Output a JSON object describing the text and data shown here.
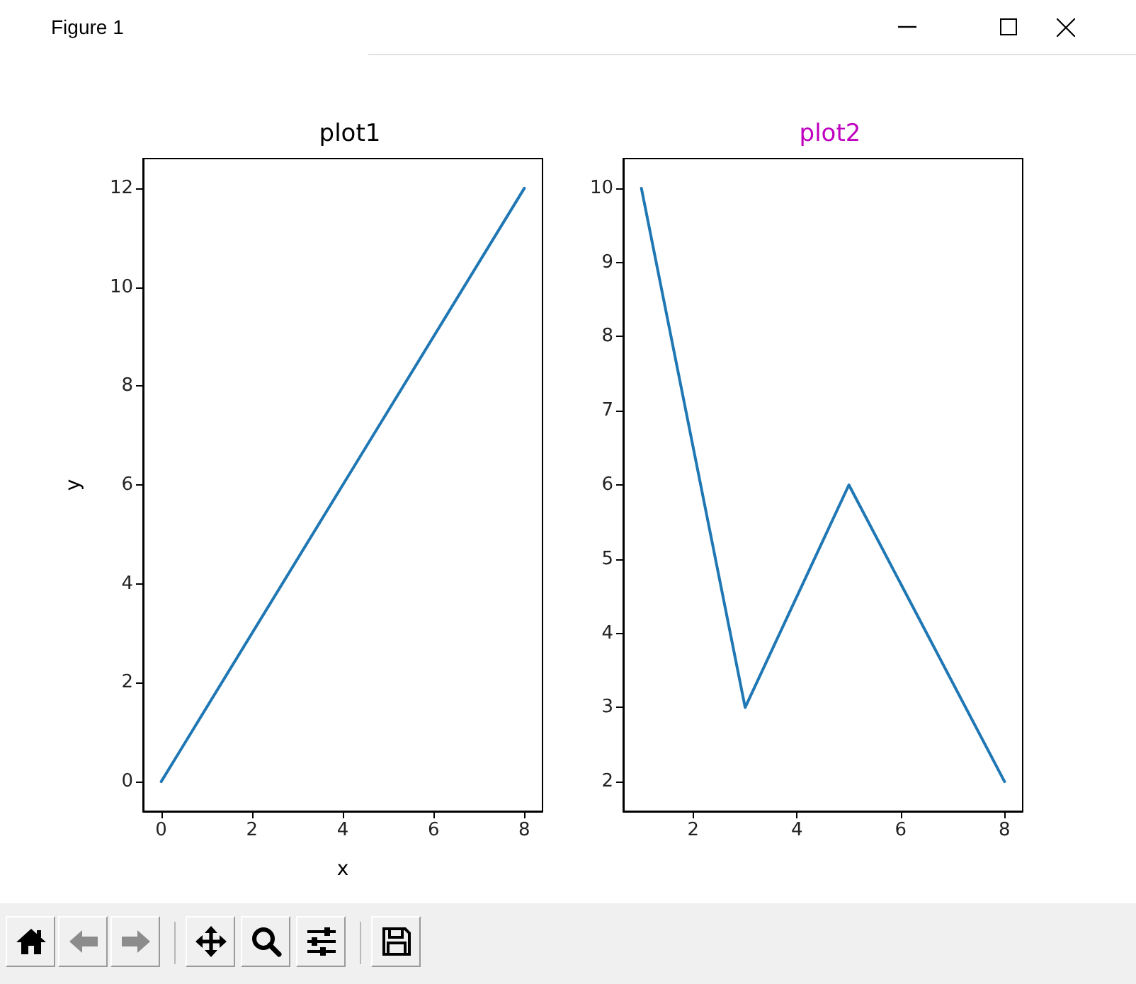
{
  "chart_data": [
    {
      "type": "line",
      "title": "plot1",
      "xlabel": "x",
      "ylabel": "y",
      "annotations": [
        "Figure 1"
      ],
      "x": [
        0,
        8
      ],
      "values": [
        0,
        12
      ],
      "color": "#1f77b4",
      "xlim": [
        -0.4,
        8.4
      ],
      "xticks": [
        0,
        2,
        4,
        6,
        8
      ],
      "ylim": [
        -0.6,
        12.6
      ],
      "yticks": [
        0,
        2,
        4,
        6,
        8,
        10,
        12
      ],
      "marker": "none"
    },
    {
      "type": "line",
      "title": "plot2",
      "x": [
        1,
        3,
        5,
        8
      ],
      "values": [
        10,
        3,
        6,
        2
      ],
      "color": "#1f77b4",
      "xlim": [
        0.65,
        8.35
      ],
      "xticks": [
        2,
        4,
        6,
        8
      ],
      "ylim": [
        1.6,
        10.4
      ],
      "yticks": [
        2,
        3,
        4,
        5,
        6,
        7,
        8,
        9,
        10
      ],
      "marker": "none"
    }
  ]
}
